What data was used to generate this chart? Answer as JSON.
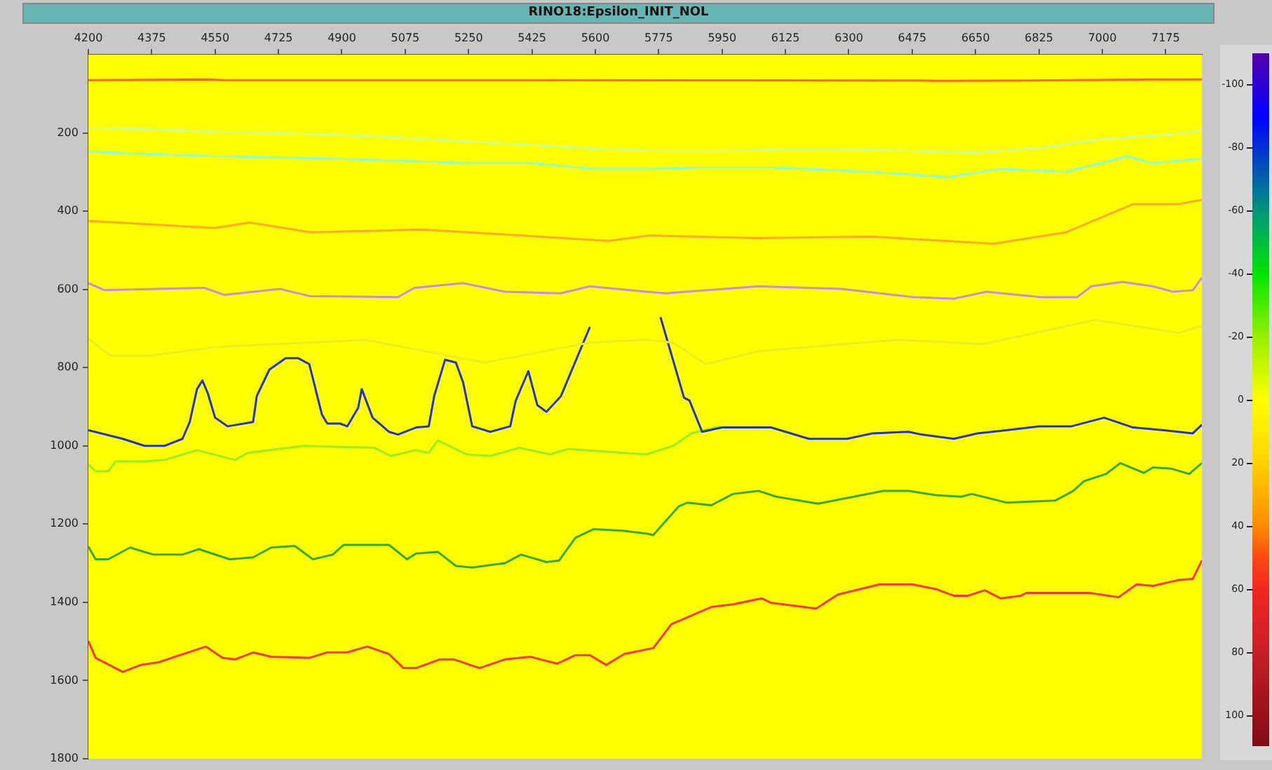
{
  "chart_data": {
    "type": "line",
    "title": "RINO18:Epsilon_INIT_NOL",
    "xlim": [
      4200,
      7275
    ],
    "xticks": [
      4200,
      4375,
      4550,
      4725,
      4900,
      5075,
      5250,
      5425,
      5600,
      5775,
      5950,
      6125,
      6300,
      6475,
      6650,
      6825,
      7000,
      7175
    ],
    "ylim": [
      1800,
      0
    ],
    "yticks": [
      200,
      400,
      600,
      800,
      1000,
      1200,
      1400,
      1600,
      1800
    ],
    "clim": [
      -110,
      110
    ],
    "cticks": [
      -100,
      -80,
      -60,
      -40,
      -20,
      0,
      20,
      40,
      60,
      80,
      100
    ],
    "grid": false,
    "legend": false,
    "marker": "none",
    "line_style": "solid",
    "series": [
      {
        "color": "#ff6600",
        "x": [
          4200,
          4530,
          4575,
          5400,
          6500,
          6550,
          6800,
          7150,
          7275
        ],
        "values": [
          65,
          63,
          65,
          65,
          66,
          67,
          66,
          63,
          63
        ]
      },
      {
        "color": "#ccff99",
        "x": [
          4200,
          4375,
          4550,
          4725,
          4900,
          5075,
          5250,
          5425,
          5600,
          5775,
          5950,
          6125,
          6300,
          6475,
          6650,
          6825,
          7000,
          7175,
          7275
        ],
        "values": [
          187,
          190,
          197,
          200,
          205,
          212,
          222,
          230,
          240,
          245,
          245,
          242,
          242,
          245,
          250,
          238,
          215,
          205,
          194
        ]
      },
      {
        "color": "#88ffdd",
        "x": [
          4200,
          4550,
          4900,
          5250,
          5425,
          5595,
          5740,
          5895,
          6085,
          6360,
          6575,
          6715,
          6900,
          7070,
          7135,
          7275
        ],
        "values": [
          248,
          259,
          266,
          277,
          277,
          292,
          292,
          288,
          288,
          299,
          313,
          292,
          299,
          259,
          277,
          266
        ]
      },
      {
        "color": "#ffaa22",
        "x": [
          4200,
          4550,
          4645,
          4815,
          5120,
          5395,
          5635,
          5750,
          6050,
          6360,
          6700,
          6900,
          7085,
          7210,
          7275
        ],
        "values": [
          425,
          443,
          429,
          454,
          447,
          462,
          476,
          462,
          469,
          465,
          483,
          454,
          382,
          382,
          371
        ]
      },
      {
        "color": "#cc88ee",
        "x": [
          4200,
          4245,
          4520,
          4575,
          4730,
          4810,
          5055,
          5100,
          5235,
          5350,
          5505,
          5585,
          5740,
          5795,
          6050,
          6280,
          6480,
          6590,
          6680,
          6830,
          6930,
          6970,
          7055,
          7140,
          7195,
          7250,
          7275
        ],
        "values": [
          584,
          602,
          596,
          614,
          599,
          617,
          620,
          596,
          584,
          606,
          610,
          592,
          606,
          610,
          592,
          599,
          620,
          624,
          606,
          620,
          620,
          592,
          581,
          592,
          606,
          602,
          570
        ]
      },
      {
        "color": "#eaee22",
        "x": [
          4200,
          4260,
          4375,
          4555,
          4965,
          5295,
          5585,
          5740,
          5815,
          5905,
          6050,
          6435,
          6670,
          6980,
          7210,
          7275
        ],
        "values": [
          726,
          769,
          769,
          747,
          729,
          787,
          736,
          729,
          736,
          791,
          758,
          729,
          740,
          678,
          711,
          693
        ]
      },
      {
        "color": "#2233cc",
        "x": [
          4200,
          4295,
          4355,
          4410,
          4460,
          4480,
          4500,
          4515,
          4530,
          4550,
          4585,
          4655,
          4665,
          4700,
          4745,
          4780,
          4810,
          4845,
          4860,
          4895,
          4915,
          4945,
          4955,
          4985,
          5030,
          5055,
          5105,
          5140,
          5155,
          5185,
          5215,
          5235,
          5260,
          5310,
          5365,
          5380,
          5415,
          5440,
          5465,
          5505,
          5585,
          5680,
          5780,
          5845,
          5860,
          5895,
          5950,
          6085,
          6190,
          6295,
          6365,
          6465,
          6500,
          6590,
          6655,
          6735,
          6825,
          6915,
          7005,
          7085,
          7170,
          7250,
          7275
        ],
        "values": [
          960,
          982,
          1000,
          1000,
          982,
          939,
          855,
          833,
          866,
          928,
          950,
          939,
          873,
          805,
          776,
          776,
          791,
          920,
          943,
          943,
          950,
          903,
          855,
          928,
          964,
          971,
          953,
          950,
          873,
          780,
          787,
          838,
          950,
          964,
          950,
          885,
          809,
          896,
          913,
          873,
          696,
          null,
          671,
          877,
          884,
          964,
          953,
          953,
          982,
          982,
          968,
          964,
          971,
          982,
          968,
          960,
          950,
          950,
          928,
          953,
          960,
          968,
          946
        ]
      },
      {
        "color": "#99ee22",
        "x": [
          4200,
          4220,
          4255,
          4275,
          4355,
          4410,
          4500,
          4605,
          4640,
          4795,
          4990,
          5035,
          5105,
          5140,
          5165,
          5245,
          5310,
          5390,
          5475,
          5525,
          5740,
          5815,
          5865,
          5945
        ],
        "values": [
          1047,
          1065,
          1065,
          1040,
          1040,
          1036,
          1011,
          1036,
          1018,
          1000,
          1005,
          1026,
          1011,
          1018,
          986,
          1022,
          1026,
          1005,
          1022,
          1008,
          1022,
          1000,
          968,
          950
        ]
      },
      {
        "color": "#33aa22",
        "x": [
          4200,
          4220,
          4255,
          4315,
          4380,
          4460,
          4505,
          4590,
          4655,
          4705,
          4770,
          4820,
          4875,
          4905,
          5030,
          5080,
          5105,
          5165,
          5215,
          5260,
          5350,
          5395,
          5465,
          5500,
          5545,
          5595,
          5675,
          5740,
          5760,
          5830,
          5855,
          5920,
          5980,
          6050,
          6100,
          6215,
          6395,
          6465,
          6540,
          6610,
          6640,
          6735,
          6870,
          6920,
          6950,
          7010,
          7050,
          7115,
          7140,
          7190,
          7240,
          7275
        ],
        "values": [
          1257,
          1290,
          1290,
          1260,
          1278,
          1278,
          1264,
          1290,
          1285,
          1260,
          1256,
          1290,
          1278,
          1253,
          1253,
          1290,
          1275,
          1271,
          1307,
          1311,
          1300,
          1278,
          1297,
          1293,
          1235,
          1213,
          1217,
          1224,
          1228,
          1155,
          1145,
          1152,
          1123,
          1115,
          1130,
          1148,
          1115,
          1115,
          1126,
          1130,
          1123,
          1145,
          1140,
          1115,
          1090,
          1072,
          1044,
          1069,
          1055,
          1058,
          1072,
          1044
        ]
      },
      {
        "color": "#ff3333",
        "x": [
          4200,
          4220,
          4295,
          4345,
          4395,
          4430,
          4525,
          4570,
          4605,
          4655,
          4705,
          4810,
          4860,
          4915,
          4970,
          5030,
          5070,
          5105,
          5170,
          5210,
          5280,
          5350,
          5420,
          5495,
          5545,
          5585,
          5630,
          5680,
          5760,
          5810,
          5920,
          5980,
          6060,
          6085,
          6210,
          6270,
          6385,
          6475,
          6540,
          6590,
          6630,
          6675,
          6720,
          6775,
          6790,
          6965,
          7045,
          7095,
          7140,
          7210,
          7250,
          7275
        ],
        "values": [
          1499,
          1542,
          1578,
          1560,
          1553,
          1542,
          1513,
          1542,
          1546,
          1528,
          1539,
          1542,
          1528,
          1528,
          1513,
          1532,
          1568,
          1568,
          1546,
          1546,
          1568,
          1546,
          1539,
          1557,
          1535,
          1535,
          1560,
          1532,
          1517,
          1456,
          1412,
          1405,
          1390,
          1401,
          1416,
          1380,
          1354,
          1354,
          1366,
          1383,
          1383,
          1369,
          1390,
          1383,
          1376,
          1376,
          1387,
          1354,
          1358,
          1343,
          1340,
          1293
        ]
      }
    ]
  }
}
